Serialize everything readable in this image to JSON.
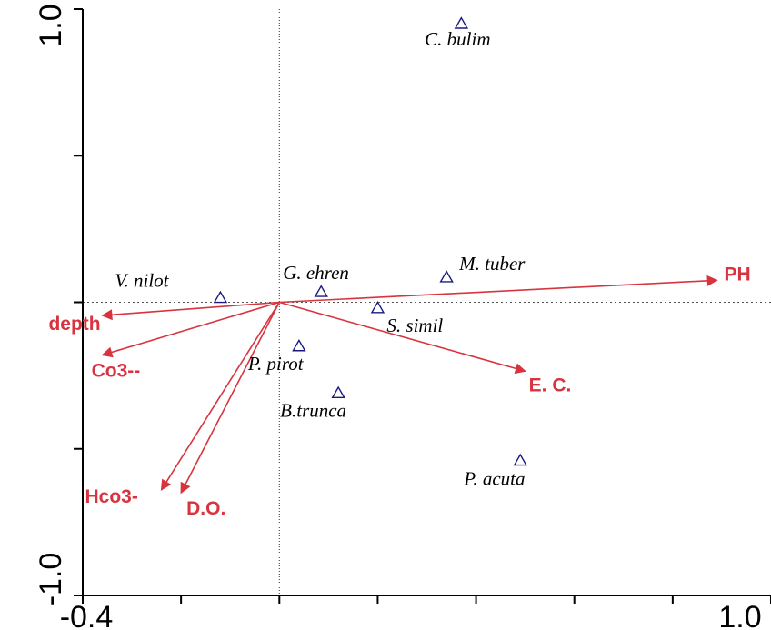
{
  "chart_data": {
    "type": "scatter",
    "title": "",
    "xlabel": "",
    "ylabel": "",
    "xlim": [
      -0.4,
      1.0
    ],
    "ylim": [
      -1.0,
      1.0
    ],
    "x_tick_labels": [
      "-0.4",
      "1.0"
    ],
    "y_tick_labels": [
      "1.0",
      "-1.0"
    ],
    "zero_lines": true,
    "colors": {
      "species_marker": "#1a1a80",
      "env_arrow": "#d8343f",
      "axis": "#000000"
    },
    "species": [
      {
        "label": "C. bulim",
        "x": 0.37,
        "y": 0.95
      },
      {
        "label": "M. tuber",
        "x": 0.34,
        "y": 0.085
      },
      {
        "label": "G. ehren",
        "x": 0.085,
        "y": 0.035
      },
      {
        "label": "V. nilot",
        "x": -0.12,
        "y": 0.015
      },
      {
        "label": "S. simil",
        "x": 0.2,
        "y": -0.02
      },
      {
        "label": "P. pirot",
        "x": 0.04,
        "y": -0.15
      },
      {
        "label": "B.trunca",
        "x": 0.12,
        "y": -0.31
      },
      {
        "label": "P. acuta",
        "x": 0.49,
        "y": -0.54
      }
    ],
    "env_vectors": [
      {
        "label": "PH",
        "x": 0.89,
        "y": 0.075
      },
      {
        "label": "depth",
        "x": -0.36,
        "y": -0.045
      },
      {
        "label": "Co3--",
        "x": -0.36,
        "y": -0.18
      },
      {
        "label": "E. C.",
        "x": 0.5,
        "y": -0.235
      },
      {
        "label": "Hco3-",
        "x": -0.24,
        "y": -0.64
      },
      {
        "label": "D.O.",
        "x": -0.2,
        "y": -0.65
      }
    ]
  }
}
